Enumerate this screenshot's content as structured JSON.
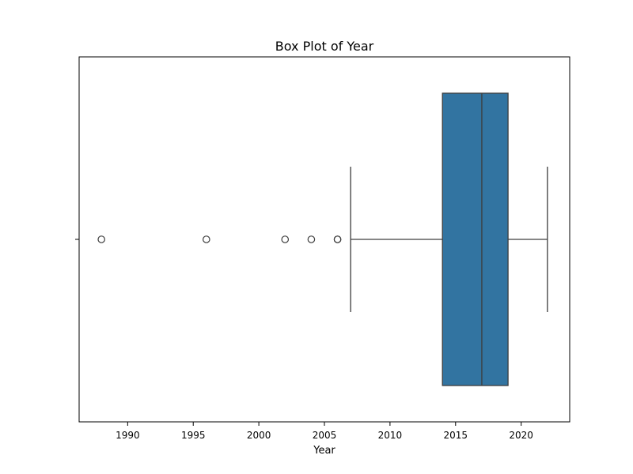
{
  "chart_data": {
    "type": "boxplot",
    "title": "Box Plot of Year",
    "xlabel": "Year",
    "ylabel": "",
    "xlim": [
      1986.3,
      2023.7
    ],
    "xticks": [
      1990,
      1995,
      2000,
      2005,
      2010,
      2015,
      2020
    ],
    "box": {
      "whisker_low": 2007,
      "q1": 2014,
      "median": 2017,
      "q3": 2019,
      "whisker_high": 2022
    },
    "outliers": [
      1988,
      1996,
      2002,
      2004,
      2006,
      2006
    ],
    "colors": {
      "box_fill": "#3274a1",
      "line": "#3d3d3d",
      "axis": "#000000"
    }
  }
}
